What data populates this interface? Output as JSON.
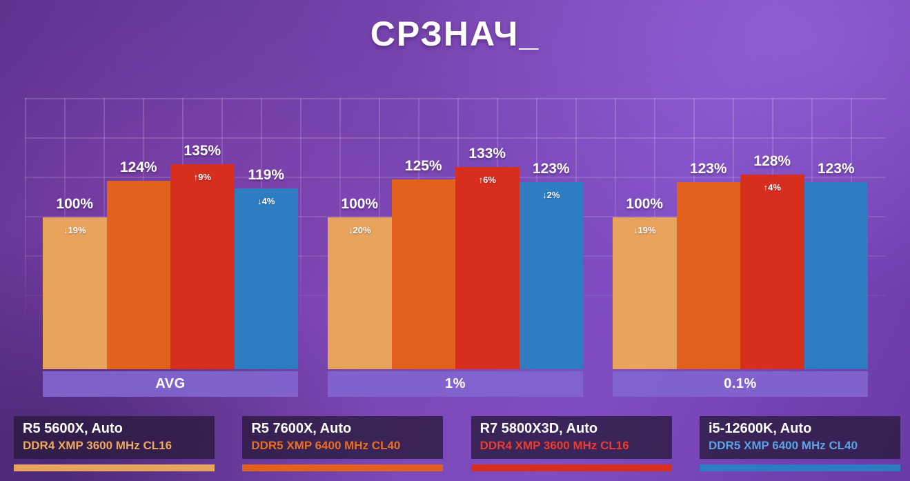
{
  "title": "СРЗНАЧ_",
  "chart_data": {
    "type": "bar",
    "title": "СРЗНАЧ_",
    "categories": [
      "AVG",
      "1%",
      "0.1%"
    ],
    "value_suffix": "%",
    "ylim": [
      0,
      140
    ],
    "grid": true,
    "legend_position": "bottom",
    "series": [
      {
        "name": "R5 5600X, Auto",
        "ram": "DDR4 XMP 3600 MHz CL16",
        "color": "#e8a45c",
        "text_color": "#edA861",
        "values": [
          100,
          100,
          100
        ],
        "badges": [
          "↓19%",
          "↓20%",
          "↓19%"
        ]
      },
      {
        "name": "R5 7600X, Auto",
        "ram": "DDR5 XMP 6400 MHz CL40",
        "color": "#e2611c",
        "text_color": "#e76f22",
        "values": [
          124,
          125,
          123
        ],
        "badges": [
          null,
          null,
          null
        ]
      },
      {
        "name": "R7 5800X3D, Auto",
        "ram": "DDR4 XMP 3600 MHz CL16",
        "color": "#d82e1e",
        "text_color": "#ea3d2c",
        "values": [
          135,
          133,
          128
        ],
        "badges": [
          "↑9%",
          "↑6%",
          "↑4%"
        ]
      },
      {
        "name": "i5-12600K, Auto",
        "ram": "DDR5 XMP 6400 MHz CL40",
        "color": "#2e7dc2",
        "text_color": "#5da2e2",
        "values": [
          119,
          123,
          123
        ],
        "badges": [
          "↓4%",
          "↓2%",
          null
        ]
      }
    ]
  }
}
